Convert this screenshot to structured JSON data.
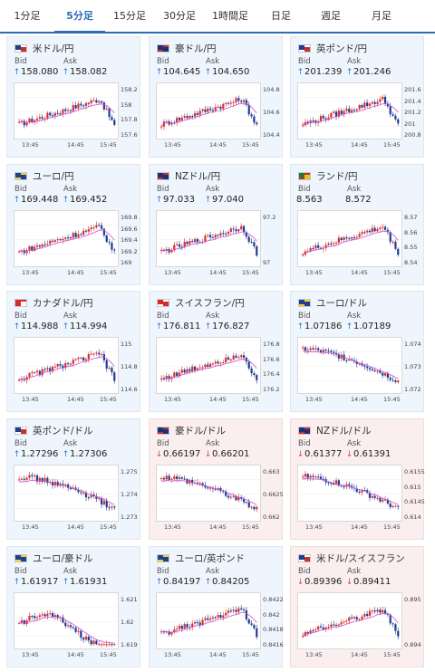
{
  "tabs": [
    {
      "label": "1分足",
      "active": false
    },
    {
      "label": "5分足",
      "active": true
    },
    {
      "label": "15分足",
      "active": false
    },
    {
      "label": "30分足",
      "active": false
    },
    {
      "label": "1時間足",
      "active": false
    },
    {
      "label": "日足",
      "active": false
    },
    {
      "label": "週足",
      "active": false
    },
    {
      "label": "月足",
      "active": false
    }
  ],
  "labels": {
    "bid": "Bid",
    "ask": "Ask"
  },
  "colors": {
    "up_arrow": "#2e7ad1",
    "down_arrow": "#d64a4a",
    "candle_up": "#d83030",
    "candle_down": "#1e3d92",
    "moving_average": "#d050d0",
    "accent": "#2b6cb8"
  },
  "pairs": [
    {
      "name": "米ドル/円",
      "flag": "us",
      "bid": "158.080",
      "ask": "158.082",
      "direction": "up",
      "yticks": [
        "158.2",
        "158",
        "157.8",
        "157.6"
      ],
      "xticks": [
        "13:45",
        "14:45",
        "15:45"
      ],
      "trend": "up-late-drop"
    },
    {
      "name": "豪ドル/円",
      "flag": "au",
      "bid": "104.645",
      "ask": "104.650",
      "direction": "up",
      "yticks": [
        "104.8",
        "104.6",
        "104.4"
      ],
      "xticks": [
        "13:45",
        "14:45",
        "15:45"
      ],
      "trend": "up-late-drop"
    },
    {
      "name": "英ポンド/円",
      "flag": "gb",
      "bid": "201.239",
      "ask": "201.246",
      "direction": "up",
      "yticks": [
        "201.6",
        "201.4",
        "201.2",
        "201",
        "200.8"
      ],
      "xticks": [
        "13:45",
        "14:45",
        "15:45"
      ],
      "trend": "up-late-drop"
    },
    {
      "name": "ユーロ/円",
      "flag": "eu",
      "bid": "169.448",
      "ask": "169.452",
      "direction": "up",
      "yticks": [
        "169.8",
        "169.6",
        "169.4",
        "169.2",
        "169"
      ],
      "xticks": [
        "13:45",
        "14:45",
        "15:45"
      ],
      "trend": "up-late-drop"
    },
    {
      "name": "NZドル/円",
      "flag": "nz",
      "bid": "97.033",
      "ask": "97.040",
      "direction": "up",
      "yticks": [
        "97.2",
        "97"
      ],
      "xticks": [
        "13:45",
        "14:45",
        "15:45"
      ],
      "trend": "up-late-drop"
    },
    {
      "name": "ランド/円",
      "flag": "za",
      "bid": "8.563",
      "ask": "8.572",
      "direction": "none",
      "yticks": [
        "8.57",
        "8.56",
        "8.55",
        "8.54"
      ],
      "xticks": [
        "13:45",
        "14:45",
        "15:45"
      ],
      "trend": "up-late-drop"
    },
    {
      "name": "カナダドル/円",
      "flag": "ca",
      "bid": "114.988",
      "ask": "114.994",
      "direction": "up",
      "yticks": [
        "115",
        "114.8",
        "114.6"
      ],
      "xticks": [
        "13:45",
        "14:45",
        "15:45"
      ],
      "trend": "up-late-drop"
    },
    {
      "name": "スイスフラン/円",
      "flag": "ch",
      "bid": "176.811",
      "ask": "176.827",
      "direction": "up",
      "yticks": [
        "176.8",
        "176.6",
        "176.4",
        "176.2"
      ],
      "xticks": [
        "13:45",
        "14:45",
        "15:45"
      ],
      "trend": "up-late-drop"
    },
    {
      "name": "ユーロ/ドル",
      "flag": "eu",
      "bid": "1.07186",
      "ask": "1.07189",
      "direction": "up",
      "yticks": [
        "1.074",
        "1.073",
        "1.072"
      ],
      "xticks": [
        "13:45",
        "14:45",
        "15:45"
      ],
      "trend": "down"
    },
    {
      "name": "英ポンド/ドル",
      "flag": "gb",
      "bid": "1.27296",
      "ask": "1.27306",
      "direction": "up",
      "yticks": [
        "1.275",
        "1.274",
        "1.273"
      ],
      "xticks": [
        "13:45",
        "14:45",
        "15:45"
      ],
      "trend": "down"
    },
    {
      "name": "豪ドル/ドル",
      "flag": "au",
      "bid": "0.66197",
      "ask": "0.66201",
      "direction": "down",
      "yticks": [
        "0.663",
        "0.6625",
        "0.662"
      ],
      "xticks": [
        "13:45",
        "14:45",
        "15:45"
      ],
      "trend": "down"
    },
    {
      "name": "NZドル/ドル",
      "flag": "nz",
      "bid": "0.61377",
      "ask": "0.61391",
      "direction": "down",
      "yticks": [
        "0.6155",
        "0.615",
        "0.6145",
        "0.614"
      ],
      "xticks": [
        "13:45",
        "14:45",
        "15:45"
      ],
      "trend": "down"
    },
    {
      "name": "ユーロ/豪ドル",
      "flag": "eu",
      "bid": "1.61917",
      "ask": "1.61931",
      "direction": "up",
      "yticks": [
        "1.621",
        "1.62",
        "1.619"
      ],
      "xticks": [
        "13:45",
        "14:45",
        "15:45"
      ],
      "trend": "dip-rise"
    },
    {
      "name": "ユーロ/英ポンド",
      "flag": "eu",
      "bid": "0.84197",
      "ask": "0.84205",
      "direction": "up",
      "yticks": [
        "0.8422",
        "0.842",
        "0.8418",
        "0.8416"
      ],
      "xticks": [
        "13:45",
        "14:45",
        "15:45"
      ],
      "trend": "up-late-drop"
    },
    {
      "name": "米ドル/スイスフラン",
      "flag": "us",
      "bid": "0.89396",
      "ask": "0.89411",
      "direction": "down",
      "yticks": [
        "0.895",
        "0.894"
      ],
      "xticks": [
        "13:45",
        "14:45",
        "15:45"
      ],
      "trend": "up-late-drop"
    }
  ]
}
